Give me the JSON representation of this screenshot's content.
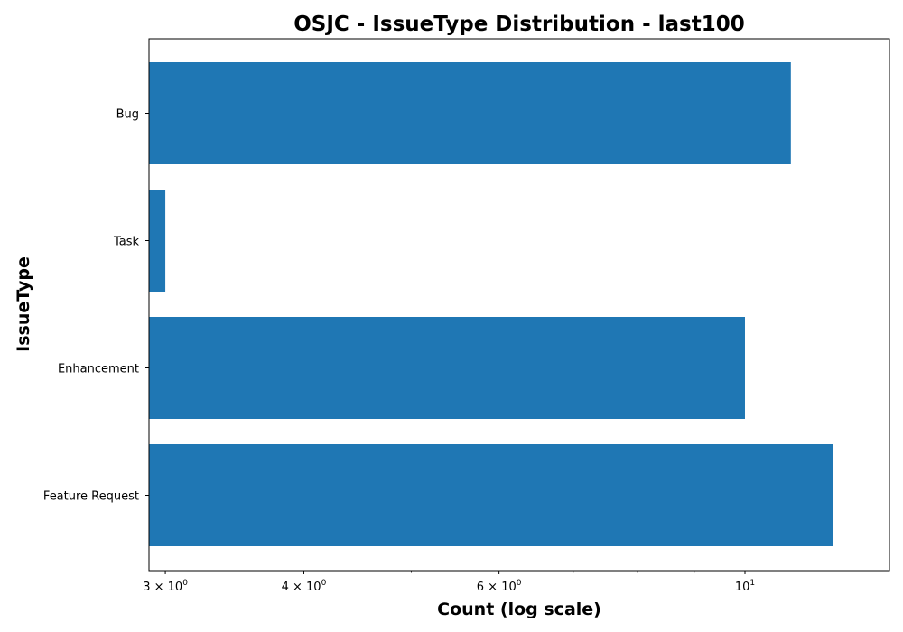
{
  "chart_data": {
    "type": "bar",
    "orientation": "horizontal",
    "title": "OSJC - IssueType Distribution - last100",
    "xlabel": "Count (log scale)",
    "ylabel": "IssueType",
    "xscale": "log",
    "xlim": [
      2.9,
      13.5
    ],
    "categories": [
      "Bug",
      "Task",
      "Enhancement",
      "Feature Request"
    ],
    "values": [
      11,
      3,
      10,
      12
    ],
    "color": "#1f77b4",
    "xticks": [
      {
        "value": 3,
        "base": "3",
        "sup": "0"
      },
      {
        "value": 4,
        "base": "4",
        "sup": "0"
      },
      {
        "value": 6,
        "base": "6",
        "sup": "0"
      },
      {
        "value": 10,
        "base": "10",
        "sup": "1"
      }
    ],
    "minor_xticks": [
      5,
      7,
      8,
      9
    ],
    "grid": false,
    "legend": "none"
  }
}
